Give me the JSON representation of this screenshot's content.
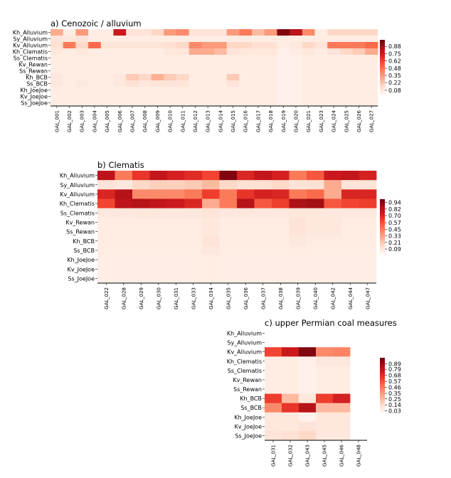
{
  "colormap": [
    "#fff5f0",
    "#fee0d2",
    "#fcbba1",
    "#fc9272",
    "#fb6a4a",
    "#ef3b2c",
    "#cb181d",
    "#a50f15",
    "#67000d"
  ],
  "chart_data": [
    {
      "type": "heatmap",
      "title": "a) Cenozoic / alluvium",
      "rows": [
        "Kh_Alluvium",
        "Sy_Alluvium",
        "Kv_Alluvium",
        "Kh_Clematis",
        "Ss_Clematis",
        "Kv_Rewan",
        "Ss_Rewan",
        "Kh_BCB",
        "Ss_BCB",
        "Kh_JoeJoe",
        "Kv_JoeJoe",
        "Ss_JoeJoe"
      ],
      "columns": [
        "GAL_001",
        "GAL_002",
        "GAL_003",
        "GAL_004",
        "GAL_005",
        "GAL_006",
        "GAL_007",
        "GAL_008",
        "GAL_009",
        "GAL_010",
        "GAL_011",
        "GAL_012",
        "GAL_013",
        "GAL_014",
        "GAL_015",
        "GAL_016",
        "GAL_017",
        "GAL_018",
        "GAL_019",
        "GAL_020",
        "GAL_021",
        "GAL_023",
        "GAL_024",
        "GAL_025",
        "GAL_026",
        "GAL_027"
      ],
      "values": [
        [
          0.3,
          0.05,
          0.35,
          0.05,
          0.05,
          0.75,
          0.1,
          0.1,
          0.15,
          0.35,
          0.4,
          0.1,
          0.1,
          0.1,
          0.35,
          0.45,
          0.25,
          0.35,
          0.95,
          0.8,
          0.4,
          0.05,
          0.15,
          0.15,
          0.15,
          0.15
        ],
        [
          0.1,
          0.08,
          0.1,
          0.05,
          0.05,
          0.05,
          0.05,
          0.05,
          0.05,
          0.05,
          0.05,
          0.05,
          0.05,
          0.05,
          0.05,
          0.05,
          0.05,
          0.05,
          0.05,
          0.05,
          0.05,
          0.05,
          0.05,
          0.05,
          0.05,
          0.05
        ],
        [
          0.12,
          0.45,
          0.15,
          0.5,
          0.1,
          0.1,
          0.1,
          0.1,
          0.1,
          0.12,
          0.15,
          0.4,
          0.35,
          0.35,
          0.15,
          0.15,
          0.12,
          0.12,
          0.05,
          0.08,
          0.15,
          0.1,
          0.45,
          0.45,
          0.45,
          0.5
        ],
        [
          0.08,
          0.05,
          0.08,
          0.05,
          0.05,
          0.05,
          0.05,
          0.05,
          0.05,
          0.08,
          0.08,
          0.3,
          0.3,
          0.25,
          0.1,
          0.08,
          0.08,
          0.08,
          0.03,
          0.05,
          0.08,
          0.05,
          0.1,
          0.15,
          0.2,
          0.3
        ],
        [
          0.05,
          0.05,
          0.05,
          0.05,
          0.05,
          0.05,
          0.05,
          0.05,
          0.05,
          0.05,
          0.05,
          0.05,
          0.05,
          0.05,
          0.05,
          0.05,
          0.05,
          0.05,
          0.03,
          0.03,
          0.05,
          0.05,
          0.05,
          0.05,
          0.05,
          0.05
        ],
        [
          0.05,
          0.05,
          0.05,
          0.05,
          0.05,
          0.05,
          0.05,
          0.05,
          0.05,
          0.05,
          0.05,
          0.05,
          0.05,
          0.05,
          0.05,
          0.05,
          0.05,
          0.05,
          0.03,
          0.03,
          0.05,
          0.05,
          0.05,
          0.05,
          0.05,
          0.05
        ],
        [
          0.05,
          0.05,
          0.05,
          0.05,
          0.05,
          0.05,
          0.05,
          0.05,
          0.05,
          0.05,
          0.05,
          0.05,
          0.05,
          0.05,
          0.05,
          0.05,
          0.05,
          0.05,
          0.03,
          0.03,
          0.05,
          0.05,
          0.05,
          0.05,
          0.05,
          0.05
        ],
        [
          0.08,
          0.05,
          0.05,
          0.05,
          0.05,
          0.08,
          0.2,
          0.15,
          0.28,
          0.2,
          0.15,
          0.05,
          0.05,
          0.05,
          0.2,
          0.05,
          0.05,
          0.05,
          0.03,
          0.03,
          0.05,
          0.05,
          0.05,
          0.05,
          0.05,
          0.05
        ],
        [
          0.08,
          0.05,
          0.08,
          0.05,
          0.05,
          0.08,
          0.12,
          0.08,
          0.1,
          0.1,
          0.1,
          0.05,
          0.05,
          0.05,
          0.1,
          0.05,
          0.05,
          0.05,
          0.03,
          0.03,
          0.05,
          0.05,
          0.05,
          0.05,
          0.05,
          0.05
        ],
        [
          0.05,
          0.05,
          0.05,
          0.05,
          0.05,
          0.05,
          0.05,
          0.05,
          0.05,
          0.05,
          0.05,
          0.05,
          0.05,
          0.05,
          0.05,
          0.05,
          0.05,
          0.05,
          0.03,
          0.03,
          0.05,
          0.05,
          0.05,
          0.05,
          0.05,
          0.05
        ],
        [
          0.05,
          0.05,
          0.05,
          0.05,
          0.05,
          0.05,
          0.05,
          0.05,
          0.05,
          0.05,
          0.05,
          0.05,
          0.05,
          0.05,
          0.05,
          0.05,
          0.05,
          0.05,
          0.03,
          0.03,
          0.05,
          0.05,
          0.05,
          0.05,
          0.05,
          0.05
        ],
        [
          0.05,
          0.05,
          0.05,
          0.05,
          0.05,
          0.05,
          0.05,
          0.05,
          0.05,
          0.05,
          0.05,
          0.05,
          0.05,
          0.05,
          0.05,
          0.05,
          0.05,
          0.05,
          0.03,
          0.03,
          0.05,
          0.05,
          0.05,
          0.05,
          0.05,
          0.05
        ]
      ],
      "colorbar": {
        "min": 0.0,
        "max": 1.0,
        "ticks": [
          0.08,
          0.22,
          0.35,
          0.48,
          0.62,
          0.75,
          0.88
        ]
      }
    },
    {
      "type": "heatmap",
      "title": "b) Clematis",
      "rows": [
        "Kh_Alluvium",
        "Sy_Alluvium",
        "Kv_Alluvium",
        "Kh_Clematis",
        "Ss_Clematis",
        "Kv_Rewan",
        "Ss_Rewan",
        "Kh_BCB",
        "Ss_BCB",
        "Kh_JoeJoe",
        "Kv_JoeJoe",
        "Ss_JoeJoe"
      ],
      "columns": [
        "GAL_022",
        "GAL_028",
        "GAL_029",
        "GAL_030",
        "GAL_031",
        "GAL_033",
        "GAL_034",
        "GAL_035",
        "GAL_036",
        "GAL_037",
        "GAL_038",
        "GAL_039",
        "GAL_040",
        "GAL_042",
        "GAL_044",
        "GAL_047"
      ],
      "values": [
        [
          0.8,
          0.45,
          0.65,
          0.78,
          0.72,
          0.68,
          0.6,
          0.95,
          0.7,
          0.78,
          0.72,
          0.45,
          0.55,
          0.75,
          0.78,
          0.72
        ],
        [
          0.1,
          0.08,
          0.15,
          0.18,
          0.18,
          0.2,
          0.25,
          0.15,
          0.12,
          0.12,
          0.15,
          0.1,
          0.12,
          0.3,
          0.1,
          0.1
        ],
        [
          0.7,
          0.82,
          0.4,
          0.4,
          0.4,
          0.45,
          0.62,
          0.45,
          0.65,
          0.72,
          0.7,
          0.45,
          0.5,
          0.3,
          0.7,
          0.7
        ],
        [
          0.6,
          0.8,
          0.82,
          0.78,
          0.75,
          0.7,
          0.3,
          0.45,
          0.82,
          0.55,
          0.62,
          0.85,
          0.88,
          0.55,
          0.6,
          0.62
        ],
        [
          0.08,
          0.08,
          0.08,
          0.08,
          0.08,
          0.08,
          0.1,
          0.08,
          0.08,
          0.08,
          0.08,
          0.08,
          0.08,
          0.08,
          0.08,
          0.08
        ],
        [
          0.05,
          0.05,
          0.06,
          0.06,
          0.06,
          0.06,
          0.08,
          0.05,
          0.05,
          0.05,
          0.05,
          0.1,
          0.08,
          0.08,
          0.05,
          0.05
        ],
        [
          0.05,
          0.05,
          0.06,
          0.06,
          0.06,
          0.06,
          0.08,
          0.05,
          0.05,
          0.05,
          0.05,
          0.1,
          0.08,
          0.08,
          0.05,
          0.05
        ],
        [
          0.05,
          0.05,
          0.05,
          0.05,
          0.05,
          0.05,
          0.1,
          0.05,
          0.05,
          0.05,
          0.05,
          0.08,
          0.06,
          0.06,
          0.05,
          0.05
        ],
        [
          0.05,
          0.05,
          0.05,
          0.05,
          0.05,
          0.05,
          0.08,
          0.05,
          0.05,
          0.05,
          0.05,
          0.06,
          0.05,
          0.05,
          0.05,
          0.05
        ],
        [
          0.04,
          0.04,
          0.04,
          0.04,
          0.04,
          0.04,
          0.05,
          0.04,
          0.04,
          0.04,
          0.04,
          0.04,
          0.04,
          0.04,
          0.04,
          0.04
        ],
        [
          0.04,
          0.04,
          0.04,
          0.04,
          0.04,
          0.04,
          0.05,
          0.04,
          0.04,
          0.04,
          0.04,
          0.04,
          0.04,
          0.04,
          0.04,
          0.04
        ],
        [
          0.04,
          0.04,
          0.04,
          0.04,
          0.04,
          0.04,
          0.05,
          0.04,
          0.04,
          0.04,
          0.04,
          0.04,
          0.04,
          0.04,
          0.04,
          0.04
        ]
      ],
      "colorbar": {
        "min": 0.0,
        "max": 1.0,
        "ticks": [
          0.09,
          0.21,
          0.33,
          0.45,
          0.57,
          0.7,
          0.82,
          0.94
        ]
      }
    },
    {
      "type": "heatmap",
      "title": "c) upper Permian coal measures",
      "rows": [
        "Kh_Alluvium",
        "Sy_Alluvium",
        "Kv_Alluvium",
        "Kh_Clematis",
        "Ss_Clematis",
        "Kv_Rewan",
        "Ss_Rewan",
        "Kh_BCB",
        "Ss_BCB",
        "Kh_JoeJoe",
        "Kv_JoeJoe",
        "Ss_JoeJoe"
      ],
      "columns": [
        "GAL_031",
        "GAL_032",
        "GAL_043",
        "GAL_045",
        "GAL_046",
        "GAL_048"
      ],
      "values": [
        [
          null,
          null,
          null,
          null,
          null,
          null
        ],
        [
          null,
          null,
          null,
          null,
          null,
          null
        ],
        [
          0.6,
          0.75,
          0.95,
          0.4,
          0.42,
          null
        ],
        [
          0.05,
          0.05,
          0.03,
          0.08,
          0.08,
          null
        ],
        [
          0.05,
          0.05,
          0.03,
          0.05,
          0.05,
          null
        ],
        [
          0.05,
          0.05,
          0.03,
          0.05,
          0.05,
          null
        ],
        [
          0.05,
          0.05,
          0.03,
          0.05,
          0.05,
          null
        ],
        [
          0.62,
          0.25,
          0.08,
          0.62,
          0.72,
          null
        ],
        [
          0.4,
          0.65,
          0.82,
          0.25,
          0.25,
          null
        ],
        [
          0.08,
          0.08,
          0.03,
          0.08,
          0.08,
          null
        ],
        [
          0.08,
          0.08,
          0.1,
          0.08,
          0.08,
          null
        ],
        [
          0.1,
          0.12,
          0.15,
          0.08,
          0.08,
          null
        ]
      ],
      "colorbar": {
        "min": 0.0,
        "max": 1.0,
        "ticks": [
          0.03,
          0.14,
          0.25,
          0.35,
          0.46,
          0.57,
          0.68,
          0.79,
          0.89
        ]
      }
    }
  ]
}
